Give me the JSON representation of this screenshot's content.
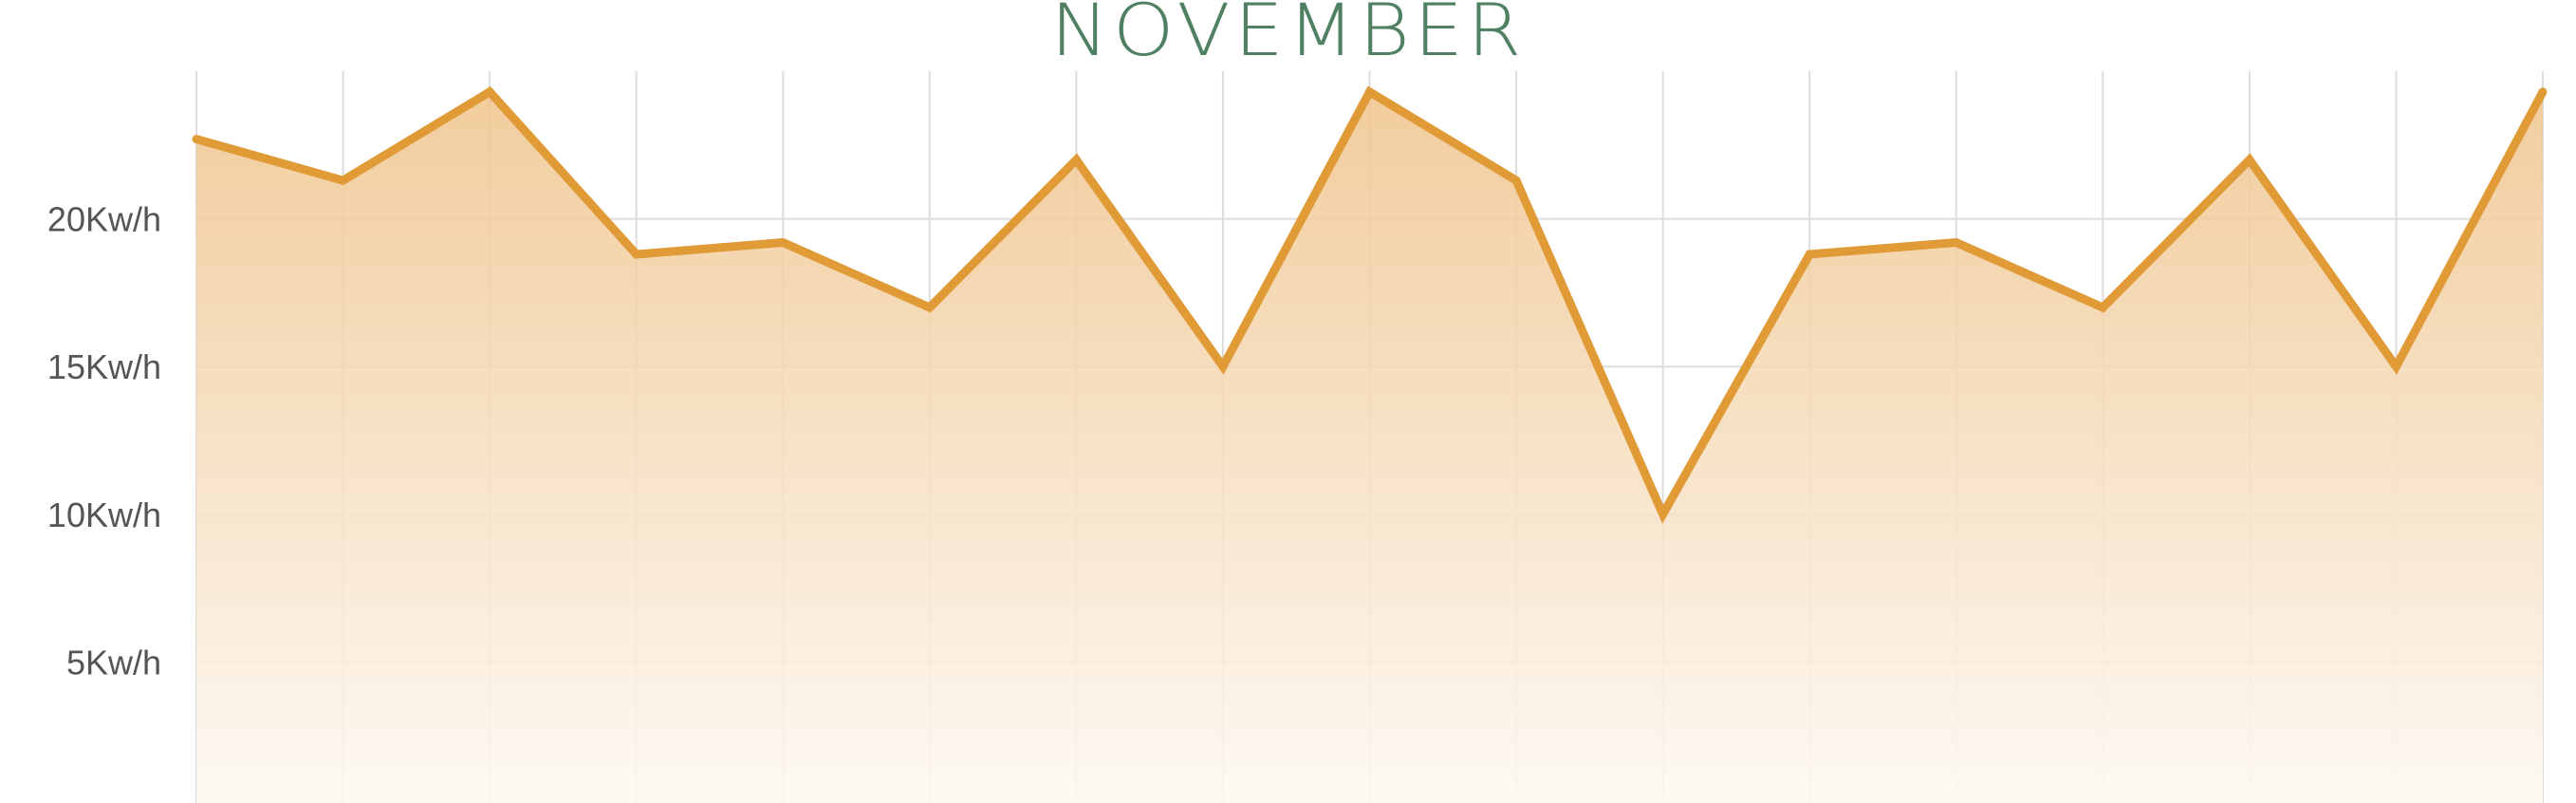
{
  "chart_data": {
    "type": "area",
    "title": "NOVEMBER",
    "xlabel": "",
    "ylabel": "",
    "x": [
      1,
      2,
      3,
      4,
      5,
      6,
      7,
      8,
      9,
      10,
      11,
      12,
      13,
      14,
      15,
      16,
      17
    ],
    "series": [
      {
        "values": [
          22.7,
          21.3,
          24.3,
          18.8,
          19.2,
          17.0,
          22.0,
          15.0,
          24.3,
          21.3,
          10.0,
          18.8,
          19.2,
          17.0,
          22.0,
          15.0,
          24.3
        ]
      }
    ],
    "ylim": [
      0,
      25
    ],
    "yticks": [
      5,
      10,
      15,
      20
    ],
    "ytick_labels": [
      "5Kw/h",
      "10Kw/h",
      "15Kw/h",
      "20Kw/h"
    ],
    "grid": true,
    "legend": "none",
    "colors": {
      "line": "#e09a36",
      "fill_top": "#efc48c",
      "fill_bottom": "#fdf9f3",
      "grid": "#dddddd",
      "title": "#4f8062",
      "tick_text": "#555555"
    }
  }
}
